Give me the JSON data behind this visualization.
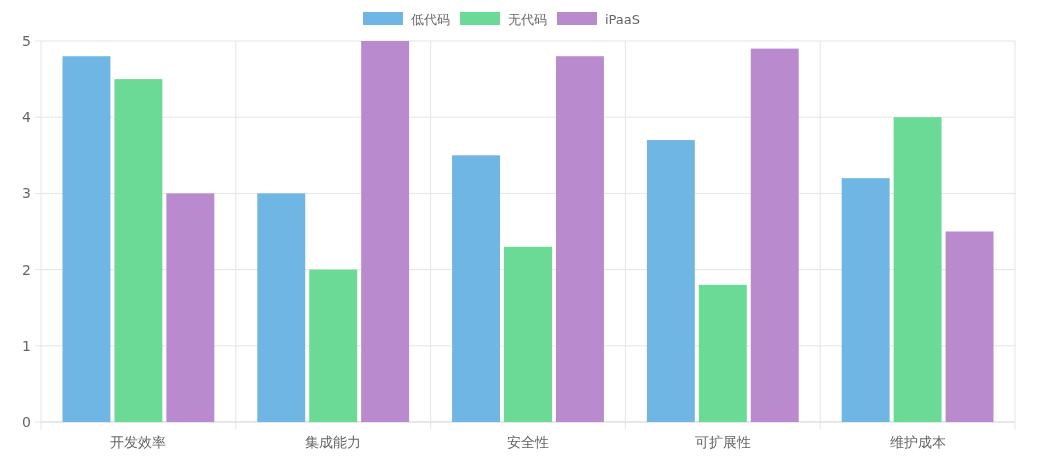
{
  "chart_data": {
    "type": "bar",
    "categories": [
      "开发效率",
      "集成能力",
      "安全性",
      "可扩展性",
      "维护成本"
    ],
    "series": [
      {
        "name": "低代码",
        "color": "#6fb6e4",
        "values": [
          4.8,
          3.0,
          3.5,
          3.7,
          3.2
        ]
      },
      {
        "name": "无代码",
        "color": "#6bda97",
        "values": [
          4.5,
          2.0,
          2.3,
          1.8,
          4.0
        ]
      },
      {
        "name": "iPaaS",
        "color": "#b98acd",
        "values": [
          3.0,
          5.0,
          4.8,
          4.9,
          2.5
        ]
      }
    ],
    "ylim": [
      0,
      5
    ],
    "yticks": [
      0,
      1,
      2,
      3,
      4,
      5
    ],
    "grid": true,
    "legend": "top"
  }
}
